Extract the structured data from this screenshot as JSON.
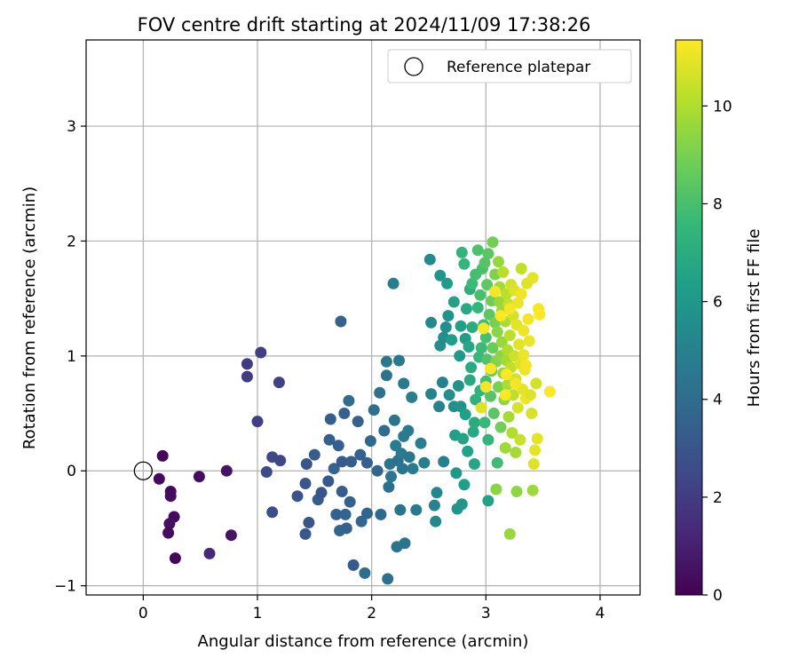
{
  "chart_data": {
    "type": "scatter",
    "title": "FOV centre drift starting at 2024/11/09 17:38:26",
    "xlabel": "Angular distance from reference (arcmin)",
    "ylabel": "Rotation from reference (arcmin)",
    "xlim": [
      -0.5,
      4.35
    ],
    "ylim": [
      -1.08,
      3.75
    ],
    "xticks": [
      "0",
      "1",
      "2",
      "3",
      "4"
    ],
    "yticks": [
      "−1",
      "0",
      "1",
      "2",
      "3"
    ],
    "grid": true,
    "legend": {
      "position": "top-right",
      "entries": [
        "Reference platepar"
      ]
    },
    "reference_point": {
      "x": 0,
      "y": 0
    },
    "colorbar": {
      "label": "Hours from first FF file",
      "range": [
        0,
        11.35
      ],
      "ticks": [
        "0",
        "2",
        "4",
        "6",
        "8",
        "10"
      ],
      "colormap": [
        "#440154",
        "#482878",
        "#3e4a89",
        "#31688e",
        "#26828e",
        "#1f9e89",
        "#35b779",
        "#6ece58",
        "#b5de2b",
        "#fde725"
      ]
    },
    "points": [
      {
        "x": 0.17,
        "y": 0.13,
        "c": 0.2
      },
      {
        "x": 0.14,
        "y": -0.07,
        "c": 0.3
      },
      {
        "x": 0.24,
        "y": -0.18,
        "c": 0.3
      },
      {
        "x": 0.24,
        "y": -0.22,
        "c": 0.4
      },
      {
        "x": 0.27,
        "y": -0.4,
        "c": 0.3
      },
      {
        "x": 0.23,
        "y": -0.46,
        "c": 0.5
      },
      {
        "x": 0.22,
        "y": -0.54,
        "c": 0.4
      },
      {
        "x": 0.28,
        "y": -0.76,
        "c": 0.2
      },
      {
        "x": 0.49,
        "y": -0.05,
        "c": 0.4
      },
      {
        "x": 0.73,
        "y": 0.0,
        "c": 0.6
      },
      {
        "x": 0.77,
        "y": -0.56,
        "c": 0.6
      },
      {
        "x": 0.58,
        "y": -0.72,
        "c": 1.3
      },
      {
        "x": 0.91,
        "y": 0.93,
        "c": 2.0
      },
      {
        "x": 0.91,
        "y": 0.82,
        "c": 2.0
      },
      {
        "x": 1.03,
        "y": 1.03,
        "c": 2.1
      },
      {
        "x": 1.0,
        "y": 0.43,
        "c": 2.1
      },
      {
        "x": 1.19,
        "y": 0.77,
        "c": 2.2
      },
      {
        "x": 1.13,
        "y": 0.12,
        "c": 2.5
      },
      {
        "x": 1.2,
        "y": 0.09,
        "c": 2.4
      },
      {
        "x": 1.08,
        "y": -0.01,
        "c": 2.6
      },
      {
        "x": 1.13,
        "y": -0.36,
        "c": 2.7
      },
      {
        "x": 1.35,
        "y": -0.22,
        "c": 2.9
      },
      {
        "x": 1.43,
        "y": 0.06,
        "c": 2.9
      },
      {
        "x": 1.42,
        "y": -0.11,
        "c": 3.0
      },
      {
        "x": 1.42,
        "y": -0.55,
        "c": 3.1
      },
      {
        "x": 1.45,
        "y": -0.45,
        "c": 3.0
      },
      {
        "x": 1.5,
        "y": 0.14,
        "c": 3.3
      },
      {
        "x": 1.53,
        "y": -0.25,
        "c": 3.2
      },
      {
        "x": 1.56,
        "y": -0.19,
        "c": 3.0
      },
      {
        "x": 1.62,
        "y": -0.09,
        "c": 3.1
      },
      {
        "x": 1.63,
        "y": 0.27,
        "c": 3.4
      },
      {
        "x": 1.64,
        "y": 0.45,
        "c": 3.3
      },
      {
        "x": 1.67,
        "y": 0.02,
        "c": 3.6
      },
      {
        "x": 1.69,
        "y": -0.38,
        "c": 3.5
      },
      {
        "x": 1.71,
        "y": 0.22,
        "c": 3.4
      },
      {
        "x": 1.72,
        "y": -0.52,
        "c": 3.6
      },
      {
        "x": 1.73,
        "y": 1.3,
        "c": 3.6
      },
      {
        "x": 1.74,
        "y": 0.08,
        "c": 3.2
      },
      {
        "x": 1.74,
        "y": -0.18,
        "c": 3.3
      },
      {
        "x": 1.76,
        "y": 0.5,
        "c": 3.5
      },
      {
        "x": 1.77,
        "y": -0.38,
        "c": 3.6
      },
      {
        "x": 1.78,
        "y": -0.5,
        "c": 3.5
      },
      {
        "x": 1.8,
        "y": 0.61,
        "c": 4.0
      },
      {
        "x": 1.81,
        "y": -0.27,
        "c": 3.5
      },
      {
        "x": 1.82,
        "y": 0.08,
        "c": 3.3
      },
      {
        "x": 1.84,
        "y": -0.82,
        "c": 3.2
      },
      {
        "x": 1.88,
        "y": 0.43,
        "c": 3.5
      },
      {
        "x": 1.9,
        "y": 0.14,
        "c": 3.5
      },
      {
        "x": 1.91,
        "y": -0.44,
        "c": 3.7
      },
      {
        "x": 1.94,
        "y": -0.89,
        "c": 4.1
      },
      {
        "x": 1.96,
        "y": 0.07,
        "c": 3.5
      },
      {
        "x": 1.96,
        "y": -0.37,
        "c": 3.6
      },
      {
        "x": 1.99,
        "y": 0.26,
        "c": 3.8
      },
      {
        "x": 2.02,
        "y": 0.53,
        "c": 4.1
      },
      {
        "x": 2.05,
        "y": 0.0,
        "c": 3.7
      },
      {
        "x": 2.07,
        "y": 0.68,
        "c": 4.2
      },
      {
        "x": 2.08,
        "y": -0.38,
        "c": 3.8
      },
      {
        "x": 2.11,
        "y": 0.35,
        "c": 4.0
      },
      {
        "x": 2.13,
        "y": 0.95,
        "c": 4.5
      },
      {
        "x": 2.13,
        "y": 0.83,
        "c": 4.3
      },
      {
        "x": 2.14,
        "y": -0.94,
        "c": 4.1
      },
      {
        "x": 2.15,
        "y": -0.14,
        "c": 4.1
      },
      {
        "x": 2.16,
        "y": 0.06,
        "c": 4.3
      },
      {
        "x": 2.17,
        "y": -0.05,
        "c": 4.4
      },
      {
        "x": 2.19,
        "y": 1.63,
        "c": 4.8
      },
      {
        "x": 2.2,
        "y": 0.44,
        "c": 4.4
      },
      {
        "x": 2.21,
        "y": 0.22,
        "c": 4.7
      },
      {
        "x": 2.22,
        "y": -0.66,
        "c": 4.3
      },
      {
        "x": 2.23,
        "y": 0.09,
        "c": 4.2
      },
      {
        "x": 2.24,
        "y": 0.96,
        "c": 4.5
      },
      {
        "x": 2.25,
        "y": -0.34,
        "c": 4.3
      },
      {
        "x": 2.26,
        "y": 0.15,
        "c": 4.6
      },
      {
        "x": 2.27,
        "y": 0.02,
        "c": 4.4
      },
      {
        "x": 2.28,
        "y": 0.3,
        "c": 4.6
      },
      {
        "x": 2.28,
        "y": 0.76,
        "c": 4.6
      },
      {
        "x": 2.29,
        "y": -0.63,
        "c": 4.3
      },
      {
        "x": 2.32,
        "y": 0.35,
        "c": 4.7
      },
      {
        "x": 2.33,
        "y": 0.12,
        "c": 4.5
      },
      {
        "x": 2.35,
        "y": 0.64,
        "c": 4.8
      },
      {
        "x": 2.36,
        "y": 0.02,
        "c": 4.7
      },
      {
        "x": 2.39,
        "y": -0.34,
        "c": 4.6
      },
      {
        "x": 2.43,
        "y": 0.24,
        "c": 4.8
      },
      {
        "x": 2.46,
        "y": 0.07,
        "c": 4.9
      },
      {
        "x": 2.51,
        "y": 1.84,
        "c": 5.4
      },
      {
        "x": 2.52,
        "y": 1.29,
        "c": 5.4
      },
      {
        "x": 2.52,
        "y": 0.67,
        "c": 5.1
      },
      {
        "x": 2.55,
        "y": -0.3,
        "c": 5.1
      },
      {
        "x": 2.56,
        "y": -0.44,
        "c": 5.3
      },
      {
        "x": 2.57,
        "y": -0.19,
        "c": 5.2
      },
      {
        "x": 2.59,
        "y": 0.56,
        "c": 5.1
      },
      {
        "x": 2.6,
        "y": 1.09,
        "c": 5.6
      },
      {
        "x": 2.6,
        "y": 1.7,
        "c": 5.9
      },
      {
        "x": 2.62,
        "y": 0.77,
        "c": 5.0
      },
      {
        "x": 2.63,
        "y": 0.08,
        "c": 5.0
      },
      {
        "x": 2.63,
        "y": 1.16,
        "c": 5.6
      },
      {
        "x": 2.65,
        "y": 1.25,
        "c": 5.6
      },
      {
        "x": 2.66,
        "y": 1.63,
        "c": 6.2
      },
      {
        "x": 2.67,
        "y": 1.35,
        "c": 5.8
      },
      {
        "x": 2.68,
        "y": 0.66,
        "c": 5.6
      },
      {
        "x": 2.7,
        "y": 1.14,
        "c": 6.3
      },
      {
        "x": 2.72,
        "y": 1.47,
        "c": 6.5
      },
      {
        "x": 2.72,
        "y": 0.56,
        "c": 5.7
      },
      {
        "x": 2.73,
        "y": 0.31,
        "c": 6.4
      },
      {
        "x": 2.74,
        "y": -0.02,
        "c": 6.0
      },
      {
        "x": 2.75,
        "y": -0.33,
        "c": 5.9
      },
      {
        "x": 2.76,
        "y": 0.74,
        "c": 5.8
      },
      {
        "x": 2.77,
        "y": 1.0,
        "c": 6.1
      },
      {
        "x": 2.78,
        "y": 1.26,
        "c": 6.4
      },
      {
        "x": 2.78,
        "y": 0.56,
        "c": 5.8
      },
      {
        "x": 2.79,
        "y": -0.29,
        "c": 6.0
      },
      {
        "x": 2.79,
        "y": 1.9,
        "c": 7.4
      },
      {
        "x": 2.8,
        "y": 0.28,
        "c": 6.6
      },
      {
        "x": 2.81,
        "y": -0.12,
        "c": 6.3
      },
      {
        "x": 2.81,
        "y": 1.8,
        "c": 7.5
      },
      {
        "x": 2.82,
        "y": 1.15,
        "c": 6.2
      },
      {
        "x": 2.82,
        "y": 0.49,
        "c": 6.4
      },
      {
        "x": 2.83,
        "y": 1.41,
        "c": 6.8
      },
      {
        "x": 2.84,
        "y": 0.17,
        "c": 6.5
      },
      {
        "x": 2.85,
        "y": 1.08,
        "c": 6.7
      },
      {
        "x": 2.86,
        "y": 0.79,
        "c": 6.8
      },
      {
        "x": 2.86,
        "y": 1.58,
        "c": 7.1
      },
      {
        "x": 2.87,
        "y": 0.9,
        "c": 6.9
      },
      {
        "x": 2.88,
        "y": 1.25,
        "c": 7.0
      },
      {
        "x": 2.88,
        "y": 1.63,
        "c": 7.7
      },
      {
        "x": 2.89,
        "y": 0.34,
        "c": 6.8
      },
      {
        "x": 2.9,
        "y": 0.42,
        "c": 7.0
      },
      {
        "x": 2.9,
        "y": 0.06,
        "c": 6.7
      },
      {
        "x": 2.91,
        "y": 0.62,
        "c": 7.2
      },
      {
        "x": 2.91,
        "y": 1.71,
        "c": 7.9
      },
      {
        "x": 2.93,
        "y": 1.92,
        "c": 8.1
      },
      {
        "x": 2.93,
        "y": 1.42,
        "c": 7.5
      },
      {
        "x": 2.94,
        "y": 0.99,
        "c": 7.6
      },
      {
        "x": 2.95,
        "y": 0.7,
        "c": 7.3
      },
      {
        "x": 2.95,
        "y": 1.53,
        "c": 8.0
      },
      {
        "x": 2.96,
        "y": 1.07,
        "c": 7.7
      },
      {
        "x": 2.97,
        "y": 1.76,
        "c": 8.0
      },
      {
        "x": 2.98,
        "y": 1.27,
        "c": 7.8
      },
      {
        "x": 2.99,
        "y": 0.42,
        "c": 7.6
      },
      {
        "x": 2.99,
        "y": 1.81,
        "c": 8.3
      },
      {
        "x": 3.0,
        "y": 0.78,
        "c": 7.9
      },
      {
        "x": 3.0,
        "y": 1.16,
        "c": 8.0
      },
      {
        "x": 3.01,
        "y": 0.97,
        "c": 8.2
      },
      {
        "x": 3.01,
        "y": 1.62,
        "c": 8.5
      },
      {
        "x": 3.02,
        "y": 1.89,
        "c": 8.4
      },
      {
        "x": 3.02,
        "y": 0.27,
        "c": 7.4
      },
      {
        "x": 3.02,
        "y": -0.26,
        "c": 6.5
      },
      {
        "x": 3.03,
        "y": 1.36,
        "c": 8.4
      },
      {
        "x": 3.04,
        "y": 0.65,
        "c": 8.3
      },
      {
        "x": 3.05,
        "y": 1.48,
        "c": 8.8
      },
      {
        "x": 3.05,
        "y": 0.87,
        "c": 8.6
      },
      {
        "x": 3.06,
        "y": 1.99,
        "c": 8.9
      },
      {
        "x": 3.06,
        "y": 1.07,
        "c": 8.7
      },
      {
        "x": 3.07,
        "y": 0.5,
        "c": 8.4
      },
      {
        "x": 3.08,
        "y": 1.71,
        "c": 9.1
      },
      {
        "x": 3.08,
        "y": 1.29,
        "c": 9.0
      },
      {
        "x": 3.09,
        "y": -0.16,
        "c": 9.3
      },
      {
        "x": 3.09,
        "y": 0.95,
        "c": 9.2
      },
      {
        "x": 3.1,
        "y": 0.07,
        "c": 7.8
      },
      {
        "x": 3.1,
        "y": 1.21,
        "c": 9.3
      },
      {
        "x": 3.11,
        "y": 0.73,
        "c": 9.0
      },
      {
        "x": 3.11,
        "y": 1.82,
        "c": 9.5
      },
      {
        "x": 3.12,
        "y": 1.47,
        "c": 9.6
      },
      {
        "x": 3.12,
        "y": 1.6,
        "c": 9.8
      },
      {
        "x": 3.13,
        "y": 1.0,
        "c": 9.4
      },
      {
        "x": 3.13,
        "y": 0.38,
        "c": 8.9
      },
      {
        "x": 3.14,
        "y": 1.39,
        "c": 9.7
      },
      {
        "x": 3.14,
        "y": 1.12,
        "c": 9.6
      },
      {
        "x": 3.15,
        "y": 0.85,
        "c": 9.5
      },
      {
        "x": 3.15,
        "y": 1.73,
        "c": 10.1
      },
      {
        "x": 3.16,
        "y": 0.62,
        "c": 9.4
      },
      {
        "x": 3.17,
        "y": 1.3,
        "c": 9.9
      },
      {
        "x": 3.17,
        "y": 0.2,
        "c": 9.7
      },
      {
        "x": 3.18,
        "y": 1.54,
        "c": 10.2
      },
      {
        "x": 3.18,
        "y": 0.96,
        "c": 9.8
      },
      {
        "x": 3.19,
        "y": 1.05,
        "c": 10.0
      },
      {
        "x": 3.19,
        "y": 0.75,
        "c": 9.9
      },
      {
        "x": 3.2,
        "y": 1.45,
        "c": 10.4
      },
      {
        "x": 3.2,
        "y": 0.47,
        "c": 9.8
      },
      {
        "x": 3.21,
        "y": 1.18,
        "c": 10.2
      },
      {
        "x": 3.21,
        "y": -0.55,
        "c": 9.6
      },
      {
        "x": 3.22,
        "y": 0.9,
        "c": 10.3
      },
      {
        "x": 3.22,
        "y": 1.62,
        "c": 10.6
      },
      {
        "x": 3.23,
        "y": 0.33,
        "c": 10.0
      },
      {
        "x": 3.24,
        "y": 1.35,
        "c": 10.6
      },
      {
        "x": 3.24,
        "y": 0.66,
        "c": 10.2
      },
      {
        "x": 3.25,
        "y": 1.0,
        "c": 10.5
      },
      {
        "x": 3.25,
        "y": 1.57,
        "c": 10.8
      },
      {
        "x": 3.26,
        "y": 0.16,
        "c": 9.8
      },
      {
        "x": 3.26,
        "y": 0.8,
        "c": 10.6
      },
      {
        "x": 3.27,
        "y": 1.27,
        "c": 10.9
      },
      {
        "x": 3.27,
        "y": -0.18,
        "c": 9.4
      },
      {
        "x": 3.28,
        "y": 1.46,
        "c": 11.0
      },
      {
        "x": 3.28,
        "y": 0.55,
        "c": 10.7
      },
      {
        "x": 3.29,
        "y": 1.1,
        "c": 10.9
      },
      {
        "x": 3.3,
        "y": 0.93,
        "c": 10.8
      },
      {
        "x": 3.3,
        "y": 0.27,
        "c": 10.4
      },
      {
        "x": 3.31,
        "y": 1.54,
        "c": 11.1
      },
      {
        "x": 3.31,
        "y": 1.76,
        "c": 10.3
      },
      {
        "x": 3.32,
        "y": 0.71,
        "c": 10.9
      },
      {
        "x": 3.33,
        "y": 1.22,
        "c": 11.1
      },
      {
        "x": 3.33,
        "y": 1.01,
        "c": 11.0
      },
      {
        "x": 3.34,
        "y": 0.88,
        "c": 11.0
      },
      {
        "x": 3.35,
        "y": 0.63,
        "c": 11.1
      },
      {
        "x": 3.36,
        "y": 1.63,
        "c": 10.8
      },
      {
        "x": 3.37,
        "y": 1.32,
        "c": 11.2
      },
      {
        "x": 3.38,
        "y": 1.13,
        "c": 11.0
      },
      {
        "x": 3.39,
        "y": 0.66,
        "c": 10.8
      },
      {
        "x": 3.4,
        "y": 0.5,
        "c": 10.7
      },
      {
        "x": 3.41,
        "y": 1.68,
        "c": 10.9
      },
      {
        "x": 3.41,
        "y": -0.17,
        "c": 9.7
      },
      {
        "x": 3.42,
        "y": 0.06,
        "c": 10.8
      },
      {
        "x": 3.43,
        "y": 0.18,
        "c": 10.9
      },
      {
        "x": 3.44,
        "y": 0.76,
        "c": 10.6
      },
      {
        "x": 3.45,
        "y": 0.28,
        "c": 10.9
      },
      {
        "x": 3.46,
        "y": 1.41,
        "c": 11.2
      },
      {
        "x": 3.47,
        "y": 1.36,
        "c": 11.3
      },
      {
        "x": 3.08,
        "y": 1.56,
        "c": 11.2
      },
      {
        "x": 3.04,
        "y": 0.89,
        "c": 11.3
      },
      {
        "x": 3.0,
        "y": 0.73,
        "c": 11.2
      },
      {
        "x": 2.98,
        "y": 1.24,
        "c": 11.3
      },
      {
        "x": 3.13,
        "y": 1.35,
        "c": 11.3
      },
      {
        "x": 3.17,
        "y": 0.66,
        "c": 11.3
      },
      {
        "x": 3.21,
        "y": 1.41,
        "c": 11.2
      },
      {
        "x": 3.26,
        "y": 0.76,
        "c": 11.2
      },
      {
        "x": 3.56,
        "y": 0.69,
        "c": 11.3
      },
      {
        "x": 2.96,
        "y": 0.55,
        "c": 10.8
      },
      {
        "x": 3.35,
        "y": 0.92,
        "c": 11.2
      },
      {
        "x": 3.18,
        "y": 0.84,
        "c": 11.3
      }
    ]
  }
}
